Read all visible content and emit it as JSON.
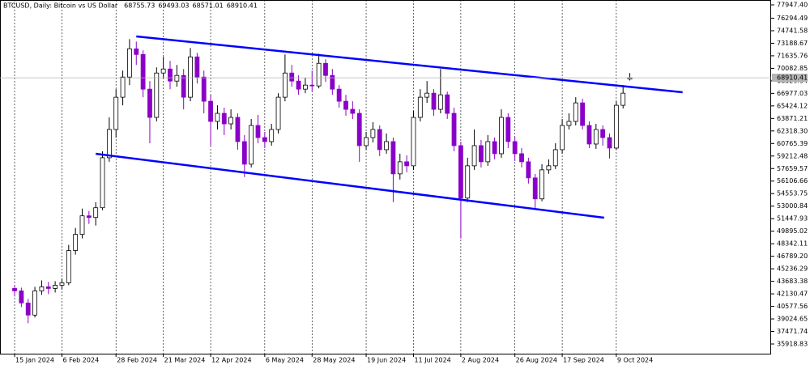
{
  "chart_data": {
    "type": "candlestick",
    "title": "BTCUSD, Daily:  Bitcoin vs US Dollar",
    "categories": [
      "15 Jan 2024",
      null,
      null,
      null,
      null,
      null,
      null,
      "6 Feb 2024",
      null,
      null,
      null,
      null,
      null,
      null,
      null,
      "28 Feb 2024",
      null,
      null,
      null,
      null,
      null,
      null,
      "21 Mar 2024",
      null,
      null,
      null,
      null,
      null,
      null,
      "12 Apr 2024",
      null,
      null,
      null,
      null,
      null,
      null,
      null,
      "6 May 2024",
      null,
      null,
      null,
      null,
      null,
      null,
      "28 May 2024",
      null,
      null,
      null,
      null,
      null,
      null,
      null,
      "19 Jun 2024",
      null,
      null,
      null,
      null,
      null,
      null,
      "11 Jul 2024",
      null,
      null,
      null,
      null,
      null,
      null,
      "2 Aug 2024",
      null,
      null,
      null,
      null,
      null,
      null,
      null,
      "26 Aug 2024",
      null,
      null,
      null,
      null,
      null,
      null,
      "17 Sep 2024",
      null,
      null,
      null,
      null,
      null,
      null,
      null,
      "9 Oct 2024",
      null,
      null
    ],
    "open": [
      42800,
      42500,
      41000,
      39500,
      42500,
      43000,
      42800,
      43200,
      43500,
      47500,
      49500,
      51800,
      51600,
      52800,
      59000,
      62500,
      66500,
      69000,
      72500,
      71800,
      67500,
      64000,
      69500,
      70000,
      68500,
      69200,
      66500,
      71500,
      69000,
      66000,
      63500,
      64500,
      63200,
      64000,
      61000,
      58200,
      63000,
      61500,
      61000,
      62500,
      66500,
      69500,
      68500,
      67500,
      68000,
      67900,
      70700,
      69200,
      67500,
      66000,
      65000,
      64500,
      60500,
      61500,
      62500,
      60000,
      61000,
      57000,
      58500,
      58000,
      64000,
      66500,
      67000,
      65000,
      66800,
      64500,
      60500,
      54000,
      58000,
      60500,
      58500,
      61000,
      59500,
      64000,
      61000,
      59500,
      58500,
      56500,
      53900,
      57500,
      58000,
      60000,
      63000,
      63500,
      65800,
      63000,
      60700,
      62500,
      61500,
      60200,
      65500,
      68755.73
    ],
    "high": [
      43200,
      42900,
      41500,
      43000,
      43800,
      43600,
      43700,
      44000,
      48200,
      50300,
      52700,
      52400,
      53500,
      59800,
      64000,
      67500,
      69800,
      73700,
      73400,
      72300,
      68500,
      70200,
      71500,
      71000,
      70500,
      70000,
      72600,
      72000,
      69800,
      66800,
      65500,
      65200,
      65000,
      64500,
      61800,
      63800,
      64300,
      62200,
      63200,
      67000,
      71800,
      70500,
      69200,
      68900,
      69800,
      71900,
      71200,
      70000,
      68000,
      66800,
      66000,
      65000,
      62200,
      63400,
      63000,
      62000,
      61500,
      59500,
      59300,
      64800,
      67500,
      68500,
      67500,
      70000,
      67200,
      65200,
      61000,
      59000,
      62500,
      61200,
      61800,
      61500,
      65000,
      64500,
      61600,
      60200,
      59000,
      57000,
      58200,
      58800,
      60800,
      63800,
      64500,
      66500,
      66300,
      63500,
      63200,
      63000,
      62000,
      66000,
      68000,
      69493.03
    ],
    "low": [
      41800,
      40500,
      38500,
      39200,
      42000,
      42100,
      42300,
      42700,
      43200,
      47000,
      49000,
      50800,
      50600,
      52500,
      58500,
      61500,
      65500,
      68000,
      70500,
      66500,
      60800,
      63500,
      68800,
      67500,
      67800,
      65000,
      66000,
      68200,
      64500,
      60500,
      62500,
      61800,
      62500,
      60000,
      56600,
      57800,
      60800,
      60200,
      60500,
      62000,
      66000,
      67800,
      66800,
      67000,
      67200,
      67600,
      68400,
      66800,
      65200,
      64200,
      63800,
      58500,
      60000,
      60900,
      59200,
      59500,
      53500,
      56300,
      57200,
      57500,
      63500,
      65800,
      64200,
      64500,
      63800,
      59800,
      49000,
      53500,
      57500,
      57800,
      58000,
      58800,
      59000,
      60200,
      58600,
      57800,
      55800,
      52600,
      53600,
      57000,
      57600,
      59500,
      62500,
      63000,
      62500,
      60200,
      60100,
      60500,
      58900,
      60000,
      65100,
      68571.01
    ],
    "close": [
      42500,
      41000,
      39500,
      42500,
      43000,
      42800,
      43200,
      43500,
      47500,
      49500,
      51800,
      51600,
      52800,
      59000,
      62500,
      66500,
      69000,
      72500,
      71800,
      67500,
      64000,
      69500,
      70000,
      68500,
      69200,
      66500,
      71500,
      69000,
      66000,
      63500,
      64500,
      63200,
      64000,
      61000,
      58200,
      63000,
      61500,
      61000,
      62500,
      66500,
      69500,
      68500,
      67500,
      68000,
      67900,
      70700,
      69200,
      67500,
      66000,
      65000,
      64500,
      60500,
      61500,
      62500,
      60000,
      61000,
      57000,
      58500,
      58000,
      64000,
      66500,
      67000,
      65000,
      66800,
      64500,
      60500,
      54000,
      58000,
      60500,
      58500,
      61000,
      59500,
      64000,
      61000,
      59500,
      58500,
      56500,
      53900,
      57500,
      58000,
      60000,
      63000,
      63500,
      65800,
      63000,
      60700,
      62500,
      61500,
      60200,
      65500,
      67000,
      68910.41
    ],
    "colors": {
      "up": "#ffffff",
      "down": "#8b00c8",
      "outline": "#000000",
      "trendline": "#0000ff",
      "price_line": "#b4b4b4"
    },
    "trendlines": [
      {
        "x": [
          18,
          98.8
        ],
        "y": [
          74036,
          67115
        ]
      },
      {
        "x": [
          12,
          87.2
        ],
        "y": [
          59492,
          51568
        ]
      }
    ],
    "xlim": [
      -2.16,
      111.9
    ],
    "ylim": [
      34717,
      78549
    ],
    "yticks": [
      {
        "value": 77947.4,
        "label": "77947.40"
      },
      76294.49,
      74741.58,
      73188.67,
      71635.76,
      70082.85,
      68529.94,
      66977.03,
      65424.12,
      63871.21,
      {
        "value": 62318.3,
        "label": "62318.30"
      },
      60765.39,
      59212.48,
      57659.57,
      56106.66,
      54553.75,
      53000.84,
      51447.93,
      49895.02,
      48342.11,
      {
        "value": 46789.2,
        "label": "46789.20"
      },
      45236.29,
      43683.38,
      42130.47,
      40577.56,
      39024.65,
      37471.74,
      35918.83
    ],
    "xgrid": true
  }
}
